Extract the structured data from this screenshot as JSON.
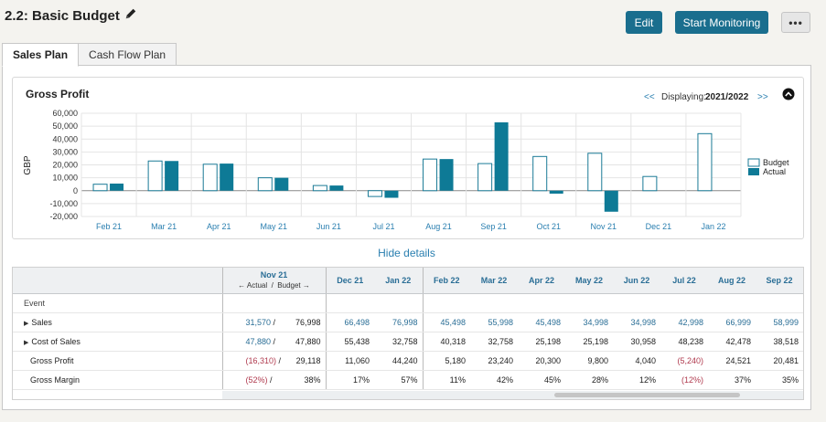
{
  "header": {
    "title": "2.2: Basic Budget",
    "edit_label": "Edit",
    "monitor_label": "Start Monitoring",
    "more_label": "•••"
  },
  "tabs": [
    "Sales Plan",
    "Cash Flow Plan"
  ],
  "chart": {
    "title": "Gross Profit",
    "nav_prev": "<<",
    "nav_next": ">>",
    "displaying_label": "Displaying:",
    "displaying_value": "2021/2022",
    "collapse_icon": "chevron-up-circle-icon"
  },
  "chart_data": {
    "type": "bar",
    "title": "Gross Profit",
    "ylabel": "GBP",
    "xlabel": "",
    "ylim": [
      -20000,
      60000
    ],
    "yticks": [
      "60,000",
      "50,000",
      "40,000",
      "30,000",
      "20,000",
      "10,000",
      "0",
      "-10,000",
      "-20,000"
    ],
    "ytick_values": [
      60000,
      50000,
      40000,
      30000,
      20000,
      10000,
      0,
      -10000,
      -20000
    ],
    "categories": [
      "Feb 21",
      "Mar 21",
      "Apr 21",
      "May 21",
      "Jun 21",
      "Jul 21",
      "Aug 21",
      "Sep 21",
      "Oct 21",
      "Nov 21",
      "Dec 21",
      "Jan 22"
    ],
    "series": [
      {
        "name": "Budget",
        "color": "#ffffff",
        "stroke": "#1a7a96",
        "values": [
          5000,
          23000,
          20500,
          10000,
          4000,
          -4500,
          24500,
          21000,
          26500,
          29000,
          11000,
          44200
        ]
      },
      {
        "name": "Actual",
        "color": "#0e7a96",
        "values": [
          5500,
          23000,
          21000,
          10000,
          4000,
          -5500,
          24500,
          53000,
          -2300,
          -16300,
          null,
          null
        ]
      }
    ],
    "legend": "right",
    "grid": true
  },
  "hide_details_label": "Hide details",
  "table": {
    "event_label": "Event",
    "nov": {
      "month": "Nov 21",
      "actual_label": "Actual",
      "slash": "/",
      "budget_label": "Budget"
    },
    "months": [
      "Dec 21",
      "Jan 22",
      "Feb 22",
      "Mar 22",
      "Apr 22",
      "May 22",
      "Jun 22",
      "Jul 22",
      "Aug 22",
      "Sep 22"
    ],
    "rows": [
      {
        "label": "Sales",
        "expandable": true,
        "nov_actual": "31,570",
        "nov_budget": "76,998",
        "values": [
          "66,498",
          "76,998",
          "45,498",
          "55,998",
          "45,498",
          "34,998",
          "34,998",
          "42,998",
          "66,999",
          "58,999"
        ]
      },
      {
        "label": "Cost of Sales",
        "expandable": true,
        "nov_actual": "47,880",
        "nov_budget": "47,880",
        "values": [
          "55,438",
          "32,758",
          "40,318",
          "32,758",
          "25,198",
          "25,198",
          "30,958",
          "48,238",
          "42,478",
          "38,518"
        ]
      },
      {
        "label": "Gross Profit",
        "expandable": false,
        "nov_actual": "(16,310)",
        "nov_budget": "29,118",
        "values": [
          "11,060",
          "44,240",
          "5,180",
          "23,240",
          "20,300",
          "9,800",
          "4,040",
          "(5,240)",
          "24,521",
          "20,481"
        ]
      },
      {
        "label": "Gross Margin",
        "expandable": false,
        "nov_actual": "(52%)",
        "nov_budget": "38%",
        "values": [
          "17%",
          "57%",
          "11%",
          "42%",
          "45%",
          "28%",
          "12%",
          "(12%)",
          "37%",
          "35%"
        ]
      }
    ]
  }
}
